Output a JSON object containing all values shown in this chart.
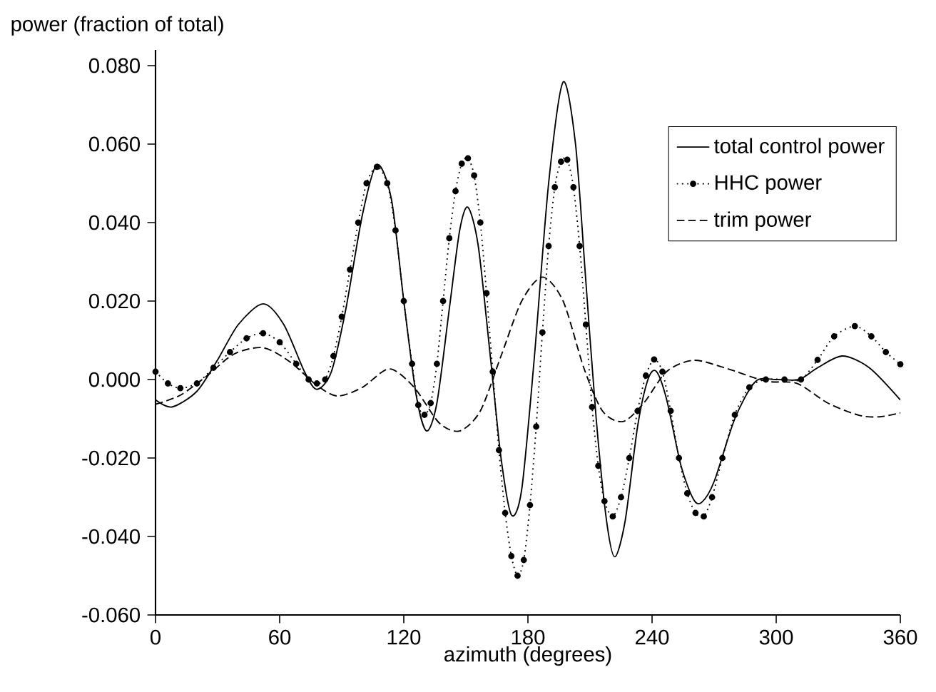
{
  "chart_data": {
    "type": "line",
    "xlabel": "azimuth (degrees)",
    "ylabel": "power (fraction of total)",
    "xlim": [
      0,
      360
    ],
    "ylim": [
      -0.06,
      0.084
    ],
    "xticks": [
      0,
      60,
      120,
      180,
      240,
      300,
      360
    ],
    "yticks": [
      {
        "value": -0.06,
        "label": "-0.060"
      },
      {
        "value": -0.04,
        "label": "-0.040"
      },
      {
        "value": -0.02,
        "label": "-0.020"
      },
      {
        "value": 0,
        "label": "0.000"
      },
      {
        "value": 0.02,
        "label": "0.020"
      },
      {
        "value": 0.04,
        "label": "0.040"
      },
      {
        "value": 0.06,
        "label": "0.060"
      },
      {
        "value": 0.08,
        "label": "0.080"
      }
    ],
    "legend": "top right",
    "grid": false,
    "series": [
      {
        "name": "total control power",
        "color": "#000000",
        "line_style": "solid",
        "marker": "none",
        "x": [
          0,
          8,
          20,
          30,
          40,
          52,
          62,
          72,
          78,
          85,
          92,
          100,
          107,
          114,
          120,
          126,
          131,
          136,
          142,
          147,
          151,
          156,
          162,
          167,
          172,
          177,
          183,
          190,
          197,
          203,
          208,
          213,
          218,
          222,
          227,
          233,
          238,
          242,
          247,
          254,
          260,
          264,
          270,
          280,
          290,
          300,
          311,
          320,
          332,
          345,
          360
        ],
        "values": [
          -0.0052,
          -0.007,
          -0.003,
          0.005,
          0.014,
          0.0193,
          0.014,
          0.002,
          -0.0025,
          0.002,
          0.018,
          0.042,
          0.0548,
          0.046,
          0.02,
          -0.004,
          -0.0131,
          -0.006,
          0.018,
          0.038,
          0.0439,
          0.034,
          0.005,
          -0.02,
          -0.0345,
          -0.028,
          0.005,
          0.05,
          0.0758,
          0.06,
          0.025,
          -0.01,
          -0.036,
          -0.0452,
          -0.036,
          -0.012,
          0.0,
          0.0021,
          -0.005,
          -0.022,
          -0.0305,
          -0.0313,
          -0.026,
          -0.01,
          -0.0005,
          0.0,
          0.0,
          0.003,
          0.006,
          0.003,
          -0.0052
        ]
      },
      {
        "name": "HHC power",
        "color": "#000000",
        "line_style": "dotted",
        "marker": "circle",
        "x": [
          0,
          6,
          12,
          20,
          28,
          36,
          44,
          52,
          60,
          68,
          74,
          78,
          82,
          86,
          90,
          94,
          98,
          102,
          107,
          112,
          116,
          120,
          124,
          127,
          130,
          133,
          136,
          139,
          142,
          145,
          148,
          151,
          154,
          157,
          160,
          163,
          166,
          169,
          172,
          175,
          178,
          181,
          184,
          187,
          190,
          193,
          196,
          199,
          202,
          205,
          208,
          211,
          214,
          217,
          221,
          225,
          229,
          233,
          237,
          241,
          245,
          249,
          253,
          257,
          261,
          265,
          269,
          274,
          280,
          287,
          295,
          304,
          312,
          320,
          328,
          338,
          346,
          353,
          360
        ],
        "values": [
          0.002,
          -0.001,
          -0.0022,
          -0.001,
          0.003,
          0.007,
          0.0105,
          0.0118,
          0.0095,
          0.004,
          0.0,
          -0.001,
          0.0,
          0.006,
          0.016,
          0.028,
          0.04,
          0.05,
          0.0542,
          0.05,
          0.038,
          0.02,
          0.004,
          -0.0065,
          -0.009,
          -0.006,
          0.004,
          0.02,
          0.036,
          0.048,
          0.055,
          0.0564,
          0.052,
          0.04,
          0.022,
          0.002,
          -0.018,
          -0.034,
          -0.045,
          -0.05,
          -0.046,
          -0.032,
          -0.012,
          0.012,
          0.034,
          0.049,
          0.0555,
          0.056,
          0.049,
          0.034,
          0.014,
          -0.007,
          -0.022,
          -0.031,
          -0.0349,
          -0.03,
          -0.02,
          -0.008,
          0.001,
          0.0051,
          0.002,
          -0.008,
          -0.02,
          -0.029,
          -0.034,
          -0.0349,
          -0.03,
          -0.02,
          -0.009,
          -0.002,
          0.0,
          0.0,
          0.0,
          0.005,
          0.011,
          0.0136,
          0.011,
          0.007,
          0.0039
        ]
      },
      {
        "name": "trim power",
        "color": "#000000",
        "line_style": "dashed",
        "marker": "none",
        "x": [
          0,
          12,
          25,
          38,
          52,
          65,
          78,
          88,
          100,
          113,
          125,
          137,
          147,
          157,
          167,
          177,
          187,
          197,
          207,
          216,
          226,
          236,
          247,
          260,
          275,
          295,
          310,
          325,
          340,
          350,
          360
        ],
        "values": [
          -0.0063,
          -0.004,
          0.001,
          0.0065,
          0.0081,
          0.0045,
          -0.0015,
          -0.0042,
          -0.002,
          0.0027,
          -0.002,
          -0.011,
          -0.0131,
          -0.008,
          0.006,
          0.02,
          0.0261,
          0.02,
          0.003,
          -0.008,
          -0.0107,
          -0.006,
          0.002,
          0.0049,
          0.003,
          -0.0004,
          -0.001,
          -0.006,
          -0.0091,
          -0.0095,
          -0.0085
        ]
      }
    ]
  }
}
